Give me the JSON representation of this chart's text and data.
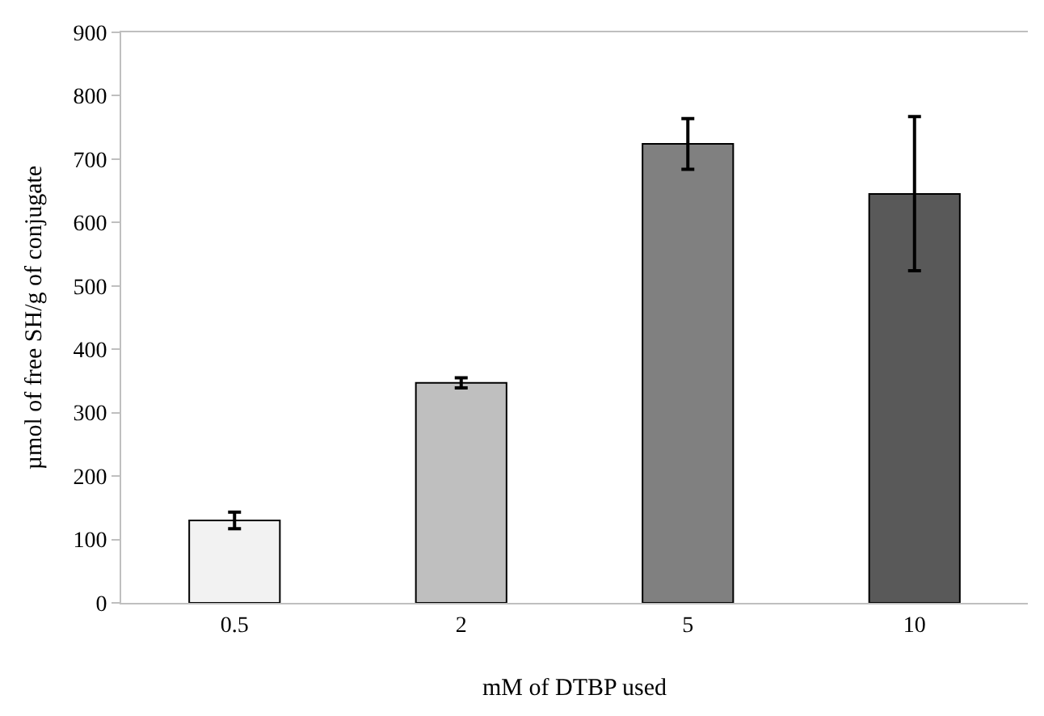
{
  "chart_data": {
    "type": "bar",
    "xlabel": "mM of DTBP used",
    "ylabel": "µmol of free SH/g of conjugate",
    "categories": [
      "0.5",
      "2",
      "5",
      "10"
    ],
    "values": [
      130,
      347,
      724,
      645
    ],
    "errors": [
      13,
      8,
      40,
      [
        524,
        767
      ]
    ],
    "colors": [
      "#f2f2f2",
      "#bfbfbf",
      "#808080",
      "#595959"
    ],
    "ylim": [
      0,
      900
    ],
    "yticks": [
      0,
      100,
      200,
      300,
      400,
      500,
      600,
      700,
      800,
      900
    ]
  }
}
